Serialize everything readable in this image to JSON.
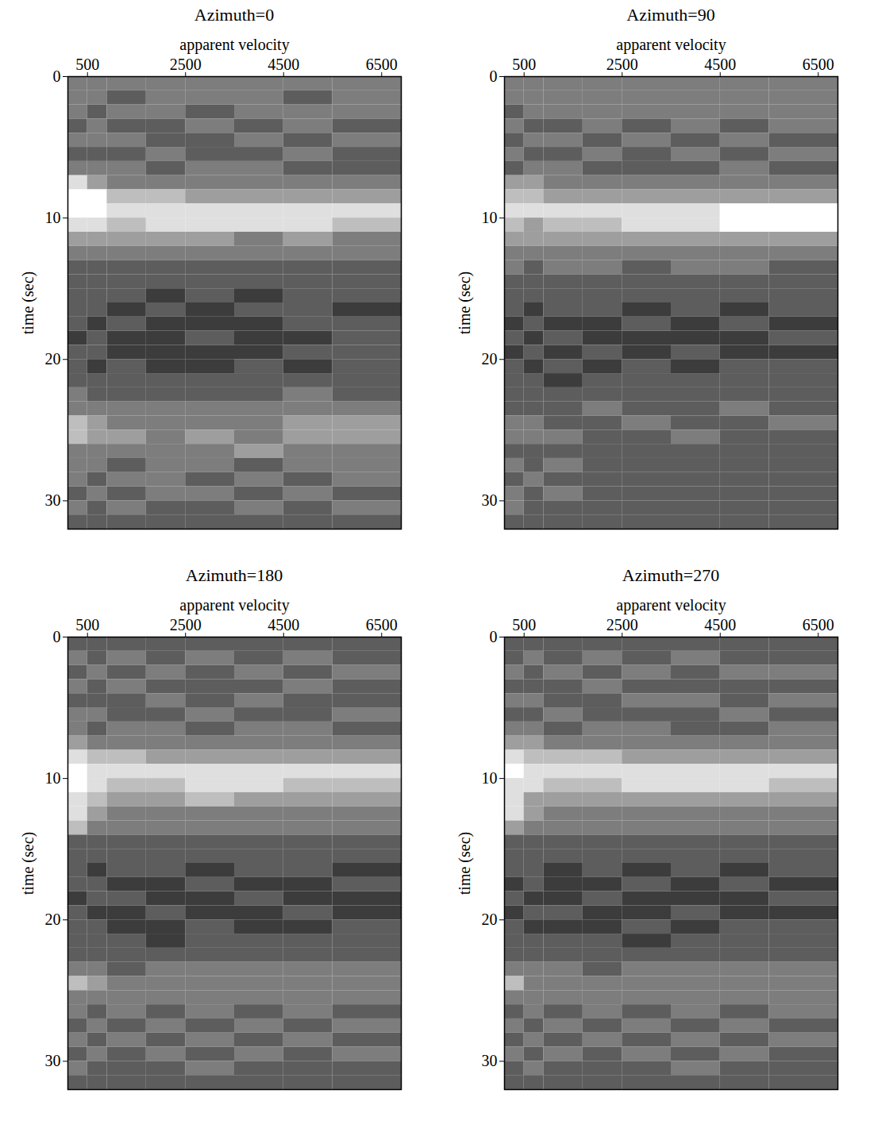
{
  "chart_data": [
    {
      "type": "heatmap",
      "title": "Azimuth=0",
      "x_label": "apparent velocity",
      "y_label": "time (sec)",
      "xlim": [
        100,
        6900
      ],
      "ylim": [
        0,
        32
      ],
      "xticks": [
        500,
        2500,
        4500,
        6500
      ],
      "yticks": [
        0,
        10,
        20,
        30
      ],
      "x_bins": [
        100,
        500,
        900,
        1700,
        2500,
        3500,
        4500,
        5500,
        6900
      ],
      "y_bins": [
        0,
        1,
        2,
        3,
        4,
        5,
        6,
        7,
        8,
        9,
        10,
        11,
        12,
        13,
        14,
        15,
        16,
        17,
        18,
        19,
        20,
        21,
        22,
        23,
        24,
        25,
        26,
        27,
        28,
        29,
        30,
        31,
        32
      ],
      "cells": [
        [
          5,
          5,
          5,
          5,
          5,
          5,
          5,
          5
        ],
        [
          5,
          5,
          4,
          5,
          5,
          5,
          4,
          5
        ],
        [
          5,
          4,
          5,
          5,
          4,
          5,
          5,
          5
        ],
        [
          4,
          5,
          4,
          4,
          5,
          4,
          5,
          4
        ],
        [
          5,
          5,
          5,
          4,
          4,
          5,
          4,
          5
        ],
        [
          4,
          4,
          4,
          5,
          4,
          4,
          5,
          4
        ],
        [
          5,
          5,
          5,
          4,
          5,
          5,
          4,
          4
        ],
        [
          8,
          6,
          5,
          5,
          5,
          5,
          5,
          5
        ],
        [
          9,
          9,
          7,
          7,
          6,
          6,
          6,
          6
        ],
        [
          9,
          9,
          8,
          8,
          8,
          8,
          8,
          8
        ],
        [
          8,
          8,
          7,
          8,
          8,
          8,
          8,
          7
        ],
        [
          6,
          6,
          6,
          6,
          6,
          5,
          6,
          5
        ],
        [
          5,
          5,
          5,
          5,
          5,
          5,
          5,
          5
        ],
        [
          4,
          4,
          4,
          4,
          4,
          4,
          4,
          4
        ],
        [
          4,
          4,
          4,
          4,
          4,
          4,
          4,
          4
        ],
        [
          4,
          4,
          4,
          3,
          4,
          3,
          4,
          4
        ],
        [
          4,
          4,
          3,
          4,
          3,
          4,
          4,
          3
        ],
        [
          4,
          3,
          4,
          3,
          3,
          3,
          4,
          4
        ],
        [
          3,
          4,
          3,
          3,
          4,
          3,
          3,
          4
        ],
        [
          4,
          4,
          3,
          3,
          3,
          3,
          4,
          4
        ],
        [
          4,
          3,
          4,
          3,
          3,
          4,
          3,
          4
        ],
        [
          4,
          4,
          4,
          4,
          4,
          4,
          4,
          4
        ],
        [
          5,
          4,
          4,
          4,
          4,
          4,
          5,
          4
        ],
        [
          5,
          5,
          5,
          5,
          5,
          5,
          5,
          5
        ],
        [
          7,
          6,
          5,
          5,
          5,
          5,
          6,
          6
        ],
        [
          7,
          6,
          6,
          5,
          6,
          5,
          6,
          6
        ],
        [
          5,
          5,
          5,
          5,
          5,
          6,
          5,
          5
        ],
        [
          5,
          5,
          4,
          5,
          5,
          4,
          5,
          5
        ],
        [
          5,
          4,
          5,
          5,
          4,
          5,
          4,
          5
        ],
        [
          4,
          5,
          4,
          5,
          5,
          4,
          5,
          4
        ],
        [
          5,
          4,
          5,
          4,
          4,
          5,
          4,
          5
        ],
        [
          4,
          4,
          4,
          4,
          4,
          4,
          4,
          4
        ]
      ]
    },
    {
      "type": "heatmap",
      "title": "Azimuth=90",
      "x_label": "apparent velocity",
      "y_label": "time (sec)",
      "xlim": [
        100,
        6900
      ],
      "ylim": [
        0,
        32
      ],
      "xticks": [
        500,
        2500,
        4500,
        6500
      ],
      "yticks": [
        0,
        10,
        20,
        30
      ],
      "x_bins": [
        100,
        500,
        900,
        1700,
        2500,
        3500,
        4500,
        5500,
        6900
      ],
      "y_bins": [
        0,
        1,
        2,
        3,
        4,
        5,
        6,
        7,
        8,
        9,
        10,
        11,
        12,
        13,
        14,
        15,
        16,
        17,
        18,
        19,
        20,
        21,
        22,
        23,
        24,
        25,
        26,
        27,
        28,
        29,
        30,
        31,
        32
      ],
      "cells": [
        [
          5,
          5,
          5,
          5,
          5,
          5,
          5,
          5
        ],
        [
          5,
          5,
          5,
          5,
          5,
          5,
          5,
          5
        ],
        [
          4,
          5,
          5,
          5,
          5,
          5,
          5,
          5
        ],
        [
          5,
          4,
          4,
          5,
          4,
          5,
          4,
          5
        ],
        [
          4,
          5,
          5,
          4,
          5,
          4,
          5,
          4
        ],
        [
          5,
          4,
          4,
          5,
          4,
          5,
          4,
          5
        ],
        [
          4,
          5,
          5,
          4,
          4,
          4,
          5,
          4
        ],
        [
          6,
          6,
          5,
          5,
          5,
          5,
          5,
          5
        ],
        [
          7,
          7,
          6,
          6,
          6,
          6,
          6,
          6
        ],
        [
          8,
          8,
          8,
          8,
          8,
          8,
          9,
          9
        ],
        [
          7,
          6,
          7,
          7,
          8,
          8,
          9,
          9
        ],
        [
          6,
          6,
          6,
          6,
          6,
          6,
          6,
          6
        ],
        [
          5,
          5,
          5,
          5,
          5,
          5,
          5,
          5
        ],
        [
          5,
          4,
          5,
          5,
          4,
          5,
          5,
          4
        ],
        [
          4,
          4,
          4,
          4,
          4,
          4,
          4,
          4
        ],
        [
          4,
          4,
          4,
          4,
          4,
          4,
          4,
          4
        ],
        [
          4,
          3,
          4,
          4,
          3,
          4,
          3,
          4
        ],
        [
          3,
          4,
          3,
          3,
          4,
          3,
          4,
          3
        ],
        [
          4,
          3,
          4,
          3,
          3,
          3,
          3,
          4
        ],
        [
          3,
          4,
          3,
          4,
          3,
          4,
          3,
          3
        ],
        [
          4,
          3,
          4,
          3,
          4,
          3,
          4,
          4
        ],
        [
          4,
          4,
          3,
          4,
          4,
          4,
          4,
          4
        ],
        [
          4,
          4,
          4,
          4,
          4,
          4,
          4,
          4
        ],
        [
          4,
          4,
          4,
          5,
          4,
          4,
          5,
          4
        ],
        [
          5,
          5,
          4,
          4,
          5,
          4,
          4,
          5
        ],
        [
          5,
          5,
          5,
          4,
          4,
          5,
          4,
          4
        ],
        [
          4,
          4,
          4,
          4,
          4,
          4,
          4,
          4
        ],
        [
          5,
          4,
          5,
          4,
          4,
          4,
          4,
          4
        ],
        [
          4,
          5,
          4,
          4,
          4,
          4,
          4,
          4
        ],
        [
          5,
          4,
          5,
          4,
          4,
          4,
          4,
          4
        ],
        [
          5,
          4,
          4,
          4,
          4,
          4,
          4,
          4
        ],
        [
          4,
          4,
          4,
          4,
          4,
          4,
          4,
          4
        ]
      ]
    },
    {
      "type": "heatmap",
      "title": "Azimuth=180",
      "x_label": "apparent velocity",
      "y_label": "time (sec)",
      "xlim": [
        100,
        6900
      ],
      "ylim": [
        0,
        32
      ],
      "xticks": [
        500,
        2500,
        4500,
        6500
      ],
      "yticks": [
        0,
        10,
        20,
        30
      ],
      "x_bins": [
        100,
        500,
        900,
        1700,
        2500,
        3500,
        4500,
        5500,
        6900
      ],
      "y_bins": [
        0,
        1,
        2,
        3,
        4,
        5,
        6,
        7,
        8,
        9,
        10,
        11,
        12,
        13,
        14,
        15,
        16,
        17,
        18,
        19,
        20,
        21,
        22,
        23,
        24,
        25,
        26,
        27,
        28,
        29,
        30,
        31,
        32
      ],
      "cells": [
        [
          4,
          4,
          4,
          4,
          4,
          4,
          4,
          4
        ],
        [
          5,
          4,
          5,
          4,
          5,
          4,
          5,
          4
        ],
        [
          4,
          5,
          4,
          5,
          4,
          5,
          4,
          5
        ],
        [
          5,
          4,
          5,
          4,
          4,
          4,
          5,
          4
        ],
        [
          4,
          4,
          4,
          5,
          4,
          5,
          4,
          4
        ],
        [
          5,
          5,
          4,
          4,
          5,
          4,
          4,
          5
        ],
        [
          5,
          4,
          5,
          5,
          4,
          5,
          5,
          4
        ],
        [
          6,
          5,
          5,
          5,
          5,
          5,
          5,
          5
        ],
        [
          8,
          7,
          7,
          6,
          6,
          6,
          6,
          6
        ],
        [
          9,
          8,
          8,
          8,
          8,
          8,
          8,
          8
        ],
        [
          9,
          8,
          7,
          7,
          8,
          8,
          7,
          7
        ],
        [
          8,
          7,
          6,
          6,
          7,
          6,
          6,
          6
        ],
        [
          8,
          6,
          5,
          5,
          5,
          5,
          5,
          5
        ],
        [
          7,
          5,
          5,
          5,
          5,
          5,
          5,
          5
        ],
        [
          4,
          4,
          4,
          4,
          4,
          4,
          4,
          4
        ],
        [
          4,
          4,
          4,
          4,
          4,
          4,
          4,
          4
        ],
        [
          4,
          3,
          4,
          4,
          3,
          4,
          4,
          3
        ],
        [
          4,
          4,
          3,
          3,
          4,
          3,
          3,
          4
        ],
        [
          3,
          4,
          4,
          3,
          3,
          4,
          3,
          3
        ],
        [
          4,
          3,
          3,
          4,
          3,
          3,
          4,
          3
        ],
        [
          4,
          4,
          3,
          3,
          4,
          3,
          3,
          4
        ],
        [
          4,
          4,
          4,
          3,
          4,
          4,
          4,
          4
        ],
        [
          4,
          4,
          4,
          4,
          4,
          4,
          4,
          4
        ],
        [
          5,
          5,
          4,
          5,
          5,
          5,
          5,
          5
        ],
        [
          7,
          6,
          5,
          5,
          5,
          5,
          5,
          5
        ],
        [
          5,
          5,
          5,
          5,
          5,
          5,
          5,
          5
        ],
        [
          5,
          4,
          5,
          4,
          5,
          4,
          5,
          4
        ],
        [
          4,
          5,
          4,
          5,
          4,
          5,
          4,
          5
        ],
        [
          5,
          4,
          5,
          4,
          5,
          4,
          5,
          4
        ],
        [
          4,
          5,
          4,
          5,
          4,
          5,
          4,
          5
        ],
        [
          5,
          4,
          4,
          4,
          5,
          4,
          4,
          4
        ],
        [
          4,
          4,
          4,
          4,
          4,
          4,
          4,
          4
        ]
      ]
    },
    {
      "type": "heatmap",
      "title": "Azimuth=270",
      "x_label": "apparent velocity",
      "y_label": "time (sec)",
      "xlim": [
        100,
        6900
      ],
      "ylim": [
        0,
        32
      ],
      "xticks": [
        500,
        2500,
        4500,
        6500
      ],
      "yticks": [
        0,
        10,
        20,
        30
      ],
      "x_bins": [
        100,
        500,
        900,
        1700,
        2500,
        3500,
        4500,
        5500,
        6900
      ],
      "y_bins": [
        0,
        1,
        2,
        3,
        4,
        5,
        6,
        7,
        8,
        9,
        10,
        11,
        12,
        13,
        14,
        15,
        16,
        17,
        18,
        19,
        20,
        21,
        22,
        23,
        24,
        25,
        26,
        27,
        28,
        29,
        30,
        31,
        32
      ],
      "cells": [
        [
          4,
          4,
          4,
          4,
          4,
          4,
          4,
          4
        ],
        [
          4,
          5,
          4,
          5,
          4,
          5,
          4,
          4
        ],
        [
          5,
          4,
          5,
          4,
          5,
          4,
          5,
          5
        ],
        [
          4,
          4,
          4,
          5,
          4,
          4,
          4,
          4
        ],
        [
          5,
          5,
          4,
          4,
          5,
          5,
          4,
          5
        ],
        [
          4,
          4,
          5,
          4,
          4,
          4,
          5,
          4
        ],
        [
          5,
          5,
          4,
          5,
          5,
          4,
          4,
          5
        ],
        [
          6,
          6,
          5,
          5,
          5,
          5,
          5,
          5
        ],
        [
          8,
          7,
          7,
          7,
          6,
          6,
          6,
          6
        ],
        [
          9,
          8,
          8,
          8,
          8,
          8,
          8,
          8
        ],
        [
          8,
          8,
          7,
          7,
          8,
          8,
          8,
          7
        ],
        [
          8,
          6,
          6,
          6,
          6,
          6,
          6,
          6
        ],
        [
          8,
          6,
          5,
          5,
          5,
          5,
          5,
          5
        ],
        [
          6,
          5,
          5,
          5,
          5,
          5,
          5,
          5
        ],
        [
          4,
          4,
          4,
          4,
          4,
          4,
          4,
          4
        ],
        [
          4,
          4,
          4,
          4,
          4,
          4,
          4,
          4
        ],
        [
          4,
          4,
          3,
          4,
          3,
          4,
          3,
          4
        ],
        [
          3,
          4,
          3,
          3,
          4,
          3,
          4,
          3
        ],
        [
          4,
          3,
          3,
          4,
          3,
          3,
          3,
          4
        ],
        [
          3,
          4,
          4,
          3,
          3,
          4,
          3,
          3
        ],
        [
          4,
          3,
          3,
          3,
          4,
          3,
          4,
          4
        ],
        [
          4,
          4,
          4,
          4,
          3,
          4,
          4,
          4
        ],
        [
          4,
          4,
          4,
          4,
          4,
          4,
          4,
          4
        ],
        [
          5,
          5,
          5,
          4,
          5,
          5,
          5,
          5
        ],
        [
          7,
          5,
          5,
          5,
          5,
          5,
          5,
          5
        ],
        [
          5,
          5,
          5,
          5,
          5,
          5,
          5,
          5
        ],
        [
          4,
          5,
          4,
          5,
          4,
          5,
          4,
          5
        ],
        [
          5,
          4,
          5,
          4,
          5,
          4,
          5,
          4
        ],
        [
          4,
          5,
          4,
          5,
          4,
          5,
          4,
          5
        ],
        [
          5,
          4,
          5,
          4,
          5,
          4,
          5,
          4
        ],
        [
          4,
          5,
          4,
          4,
          4,
          5,
          4,
          4
        ],
        [
          4,
          4,
          4,
          4,
          4,
          4,
          4,
          4
        ]
      ]
    }
  ]
}
